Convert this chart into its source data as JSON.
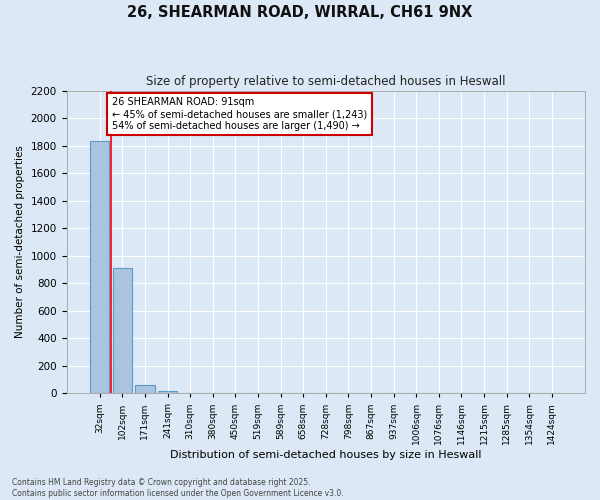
{
  "title1": "26, SHEARMAN ROAD, WIRRAL, CH61 9NX",
  "title2": "Size of property relative to semi-detached houses in Heswall",
  "xlabel": "Distribution of semi-detached houses by size in Heswall",
  "ylabel": "Number of semi-detached properties",
  "categories": [
    "32sqm",
    "102sqm",
    "171sqm",
    "241sqm",
    "310sqm",
    "380sqm",
    "450sqm",
    "519sqm",
    "589sqm",
    "658sqm",
    "728sqm",
    "798sqm",
    "867sqm",
    "937sqm",
    "1006sqm",
    "1076sqm",
    "1146sqm",
    "1215sqm",
    "1285sqm",
    "1354sqm",
    "1424sqm"
  ],
  "values": [
    1830,
    910,
    60,
    20,
    0,
    0,
    0,
    0,
    0,
    0,
    0,
    0,
    0,
    0,
    0,
    0,
    0,
    0,
    0,
    0,
    0
  ],
  "bar_color": "#aac4e0",
  "bar_edge_color": "#5a9bc8",
  "red_line_x": 0.5,
  "annotation_text": "26 SHEARMAN ROAD: 91sqm\n← 45% of semi-detached houses are smaller (1,243)\n54% of semi-detached houses are larger (1,490) →",
  "annotation_box_color": "#ffffff",
  "annotation_box_edge": "#cc0000",
  "ylim": [
    0,
    2200
  ],
  "yticks": [
    0,
    200,
    400,
    600,
    800,
    1000,
    1200,
    1400,
    1600,
    1800,
    2000,
    2200
  ],
  "bg_color": "#dce8f5",
  "fig_color": "#dce8f5",
  "grid_color": "#ffffff",
  "footer1": "Contains HM Land Registry data © Crown copyright and database right 2025.",
  "footer2": "Contains public sector information licensed under the Open Government Licence v3.0."
}
